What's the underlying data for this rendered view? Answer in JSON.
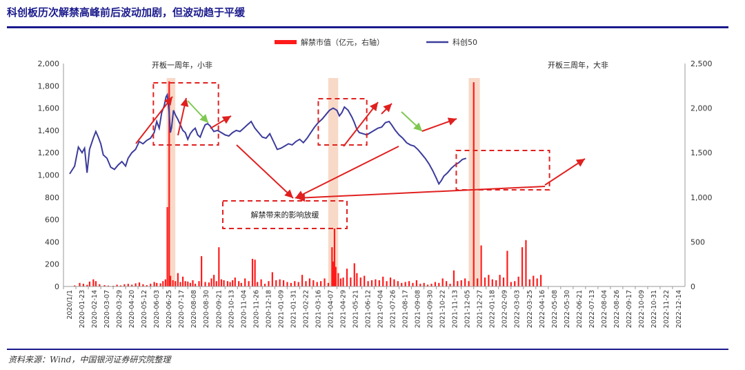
{
  "title": "科创板历次解禁高峰前后波动加剧，但波动趋于平缓",
  "source": "资料来源：Wind，中国银河证券研究院整理",
  "colors": {
    "line": "#3b3b9c",
    "bar": "#ff1a1a",
    "highlight": "#f8d9c8",
    "box": "#e0201f",
    "green": "#7ec850"
  },
  "chart_data": {
    "type": "bar+line",
    "legend": [
      "解禁市值（亿元，右轴）",
      "科创50"
    ],
    "y_left": {
      "min": 0,
      "max": 2000,
      "ticks": [
        "0",
        "200",
        "400",
        "600",
        "800",
        "1,000",
        "1,200",
        "1,400",
        "1,600",
        "1,800",
        "2,000"
      ]
    },
    "y_right": {
      "min": 0,
      "max": 2500,
      "ticks": [
        "0",
        "500",
        "1,000",
        "1,500",
        "2,000",
        "2,500"
      ]
    },
    "x_ticks": [
      "2020/1/1",
      "2020-01-23",
      "2020-02-14",
      "2020-03-07",
      "2020-03-29",
      "2020-04-20",
      "2020-05-12",
      "2020-06-03",
      "2020-06-25",
      "2020-07-17",
      "2020-08-08",
      "2020-08-30",
      "2020-09-21",
      "2020-10-13",
      "2020-11-04",
      "2020-11-26",
      "2020-12-18",
      "2021-01-09",
      "2021-01-31",
      "2021-02-22",
      "2021-03-16",
      "2021-04-07",
      "2021-04-29",
      "2021-05-21",
      "2021-06-12",
      "2021-07-04",
      "2021-07-26",
      "2021-08-17",
      "2021-09-08",
      "2021-09-30",
      "2021-10-22",
      "2021-11-13",
      "2021-12-05",
      "2021-12-27",
      "2022-01-18",
      "2022-02-09",
      "2022-03-03",
      "2022-03-25",
      "2022-04-16",
      "2022-05-08",
      "2022-05-30",
      "2022-06-21",
      "2022-07-13",
      "2022-08-04",
      "2022-08-26",
      "2022-09-17",
      "2022-10-09",
      "2022-10-31",
      "2022-11-22",
      "2022-12-14"
    ],
    "kc50_series": [
      [
        0,
        1010
      ],
      [
        0.4,
        1080
      ],
      [
        0.7,
        1250
      ],
      [
        1.0,
        1200
      ],
      [
        1.2,
        1240
      ],
      [
        1.4,
        1020
      ],
      [
        1.6,
        1230
      ],
      [
        1.9,
        1330
      ],
      [
        2.1,
        1390
      ],
      [
        2.3,
        1340
      ],
      [
        2.5,
        1280
      ],
      [
        2.7,
        1180
      ],
      [
        3.0,
        1150
      ],
      [
        3.3,
        1070
      ],
      [
        3.6,
        1050
      ],
      [
        3.9,
        1090
      ],
      [
        4.2,
        1120
      ],
      [
        4.5,
        1080
      ],
      [
        4.7,
        1150
      ],
      [
        5.0,
        1200
      ],
      [
        5.3,
        1230
      ],
      [
        5.6,
        1300
      ],
      [
        5.9,
        1280
      ],
      [
        6.2,
        1310
      ],
      [
        6.5,
        1330
      ],
      [
        6.8,
        1380
      ],
      [
        7.0,
        1480
      ],
      [
        7.2,
        1420
      ],
      [
        7.4,
        1560
      ],
      [
        7.6,
        1620
      ],
      [
        7.75,
        1700
      ],
      [
        7.85,
        1720
      ],
      [
        8.0,
        1560
      ],
      [
        8.1,
        1380
      ],
      [
        8.2,
        1430
      ],
      [
        8.35,
        1580
      ],
      [
        8.5,
        1540
      ],
      [
        8.7,
        1500
      ],
      [
        8.9,
        1450
      ],
      [
        9.1,
        1400
      ],
      [
        9.3,
        1380
      ],
      [
        9.5,
        1320
      ],
      [
        9.7,
        1370
      ],
      [
        9.9,
        1400
      ],
      [
        10.1,
        1420
      ],
      [
        10.3,
        1360
      ],
      [
        10.5,
        1340
      ],
      [
        10.7,
        1400
      ],
      [
        10.9,
        1450
      ],
      [
        11.1,
        1460
      ],
      [
        11.3,
        1440
      ],
      [
        11.6,
        1390
      ],
      [
        11.9,
        1400
      ],
      [
        12.2,
        1380
      ],
      [
        12.5,
        1360
      ],
      [
        12.8,
        1350
      ],
      [
        13.1,
        1380
      ],
      [
        13.4,
        1400
      ],
      [
        13.7,
        1390
      ],
      [
        14.0,
        1420
      ],
      [
        14.3,
        1450
      ],
      [
        14.6,
        1480
      ],
      [
        14.9,
        1420
      ],
      [
        15.2,
        1380
      ],
      [
        15.5,
        1340
      ],
      [
        15.8,
        1330
      ],
      [
        16.1,
        1370
      ],
      [
        16.4,
        1300
      ],
      [
        16.7,
        1230
      ],
      [
        17.0,
        1240
      ],
      [
        17.3,
        1260
      ],
      [
        17.6,
        1280
      ],
      [
        17.9,
        1270
      ],
      [
        18.2,
        1300
      ],
      [
        18.5,
        1320
      ],
      [
        18.8,
        1290
      ],
      [
        19.1,
        1330
      ],
      [
        19.4,
        1380
      ],
      [
        19.7,
        1430
      ],
      [
        20.0,
        1470
      ],
      [
        20.3,
        1500
      ],
      [
        20.6,
        1540
      ],
      [
        20.9,
        1580
      ],
      [
        21.2,
        1600
      ],
      [
        21.5,
        1580
      ],
      [
        21.7,
        1530
      ],
      [
        21.9,
        1560
      ],
      [
        22.1,
        1610
      ],
      [
        22.4,
        1580
      ],
      [
        22.7,
        1520
      ],
      [
        22.9,
        1470
      ],
      [
        23.1,
        1410
      ],
      [
        23.3,
        1380
      ],
      [
        23.6,
        1370
      ],
      [
        23.9,
        1360
      ],
      [
        24.2,
        1380
      ],
      [
        24.5,
        1400
      ],
      [
        24.8,
        1420
      ],
      [
        25.1,
        1430
      ],
      [
        25.4,
        1470
      ],
      [
        25.7,
        1480
      ],
      [
        25.9,
        1450
      ],
      [
        26.2,
        1400
      ],
      [
        26.5,
        1360
      ],
      [
        26.8,
        1330
      ],
      [
        27.1,
        1290
      ],
      [
        27.4,
        1270
      ],
      [
        27.7,
        1260
      ],
      [
        28.0,
        1230
      ],
      [
        28.3,
        1190
      ],
      [
        28.6,
        1150
      ],
      [
        28.9,
        1100
      ],
      [
        29.2,
        1040
      ],
      [
        29.5,
        970
      ],
      [
        29.7,
        920
      ],
      [
        29.9,
        950
      ],
      [
        30.1,
        990
      ],
      [
        30.4,
        1020
      ],
      [
        30.7,
        1060
      ],
      [
        31.0,
        1090
      ],
      [
        31.3,
        1110
      ],
      [
        31.6,
        1140
      ],
      [
        31.9,
        1150
      ]
    ],
    "unlock_bars": [
      [
        0.4,
        12
      ],
      [
        0.8,
        40
      ],
      [
        1.1,
        30
      ],
      [
        1.4,
        18
      ],
      [
        1.6,
        55
      ],
      [
        1.9,
        80
      ],
      [
        2.1,
        60
      ],
      [
        2.4,
        25
      ],
      [
        2.8,
        15
      ],
      [
        3.1,
        10
      ],
      [
        3.5,
        8
      ],
      [
        3.8,
        20
      ],
      [
        4.1,
        12
      ],
      [
        4.4,
        25
      ],
      [
        4.7,
        30
      ],
      [
        5.0,
        20
      ],
      [
        5.3,
        35
      ],
      [
        5.6,
        45
      ],
      [
        5.9,
        25
      ],
      [
        6.2,
        15
      ],
      [
        6.5,
        30
      ],
      [
        6.8,
        50
      ],
      [
        7.0,
        40
      ],
      [
        7.3,
        35
      ],
      [
        7.5,
        60
      ],
      [
        7.7,
        80
      ],
      [
        7.85,
        890
      ],
      [
        8.0,
        2300
      ],
      [
        8.1,
        120
      ],
      [
        8.3,
        70
      ],
      [
        8.5,
        60
      ],
      [
        8.7,
        150
      ],
      [
        8.9,
        50
      ],
      [
        9.1,
        110
      ],
      [
        9.3,
        60
      ],
      [
        9.5,
        55
      ],
      [
        9.7,
        40
      ],
      [
        9.9,
        70
      ],
      [
        10.1,
        30
      ],
      [
        10.4,
        60
      ],
      [
        10.6,
        340
      ],
      [
        10.9,
        50
      ],
      [
        11.2,
        45
      ],
      [
        11.4,
        90
      ],
      [
        11.6,
        130
      ],
      [
        11.8,
        60
      ],
      [
        12.0,
        440
      ],
      [
        12.2,
        80
      ],
      [
        12.4,
        70
      ],
      [
        12.7,
        60
      ],
      [
        12.9,
        50
      ],
      [
        13.1,
        70
      ],
      [
        13.3,
        100
      ],
      [
        13.6,
        60
      ],
      [
        13.8,
        40
      ],
      [
        14.1,
        90
      ],
      [
        14.4,
        60
      ],
      [
        14.7,
        310
      ],
      [
        14.9,
        300
      ],
      [
        15.1,
        50
      ],
      [
        15.4,
        80
      ],
      [
        15.7,
        30
      ],
      [
        16.0,
        60
      ],
      [
        16.3,
        160
      ],
      [
        16.6,
        70
      ],
      [
        16.9,
        80
      ],
      [
        17.2,
        70
      ],
      [
        17.5,
        50
      ],
      [
        17.8,
        40
      ],
      [
        18.1,
        60
      ],
      [
        18.4,
        50
      ],
      [
        18.7,
        130
      ],
      [
        19.0,
        60
      ],
      [
        19.3,
        90
      ],
      [
        19.6,
        70
      ],
      [
        19.9,
        50
      ],
      [
        20.2,
        60
      ],
      [
        20.5,
        90
      ],
      [
        20.8,
        40
      ],
      [
        21.1,
        440
      ],
      [
        21.2,
        280
      ],
      [
        21.3,
        650
      ],
      [
        21.4,
        220
      ],
      [
        21.6,
        150
      ],
      [
        21.8,
        90
      ],
      [
        22.0,
        100
      ],
      [
        22.3,
        200
      ],
      [
        22.6,
        100
      ],
      [
        22.9,
        260
      ],
      [
        23.1,
        150
      ],
      [
        23.4,
        100
      ],
      [
        23.7,
        120
      ],
      [
        24.0,
        60
      ],
      [
        24.3,
        70
      ],
      [
        24.6,
        80
      ],
      [
        24.9,
        70
      ],
      [
        25.2,
        110
      ],
      [
        25.5,
        60
      ],
      [
        25.8,
        100
      ],
      [
        26.1,
        80
      ],
      [
        26.4,
        60
      ],
      [
        26.7,
        40
      ],
      [
        27.0,
        50
      ],
      [
        27.3,
        60
      ],
      [
        27.6,
        40
      ],
      [
        27.9,
        70
      ],
      [
        28.2,
        30
      ],
      [
        28.5,
        40
      ],
      [
        28.8,
        20
      ],
      [
        29.1,
        30
      ],
      [
        29.4,
        50
      ],
      [
        29.7,
        40
      ],
      [
        30.0,
        90
      ],
      [
        30.3,
        60
      ],
      [
        30.6,
        30
      ],
      [
        30.9,
        180
      ],
      [
        31.2,
        60
      ],
      [
        31.5,
        70
      ],
      [
        31.8,
        90
      ],
      [
        32.1,
        60
      ],
      [
        32.5,
        2290
      ],
      [
        32.8,
        90
      ],
      [
        33.1,
        460
      ],
      [
        33.4,
        100
      ],
      [
        33.7,
        130
      ],
      [
        34.0,
        80
      ],
      [
        34.3,
        70
      ],
      [
        34.6,
        130
      ],
      [
        34.9,
        100
      ],
      [
        35.2,
        400
      ],
      [
        35.5,
        50
      ],
      [
        35.8,
        60
      ],
      [
        36.1,
        110
      ],
      [
        36.4,
        440
      ],
      [
        36.7,
        520
      ],
      [
        37.0,
        80
      ],
      [
        37.3,
        120
      ],
      [
        37.6,
        90
      ],
      [
        37.9,
        130
      ]
    ],
    "highlight_bands": [
      [
        7.8,
        8.5
      ],
      [
        20.8,
        21.6
      ],
      [
        32.1,
        33.0
      ]
    ],
    "annotations": [
      "开板一周年，小非",
      "开板三周年，大非",
      "解禁带来的影响放缓"
    ]
  }
}
